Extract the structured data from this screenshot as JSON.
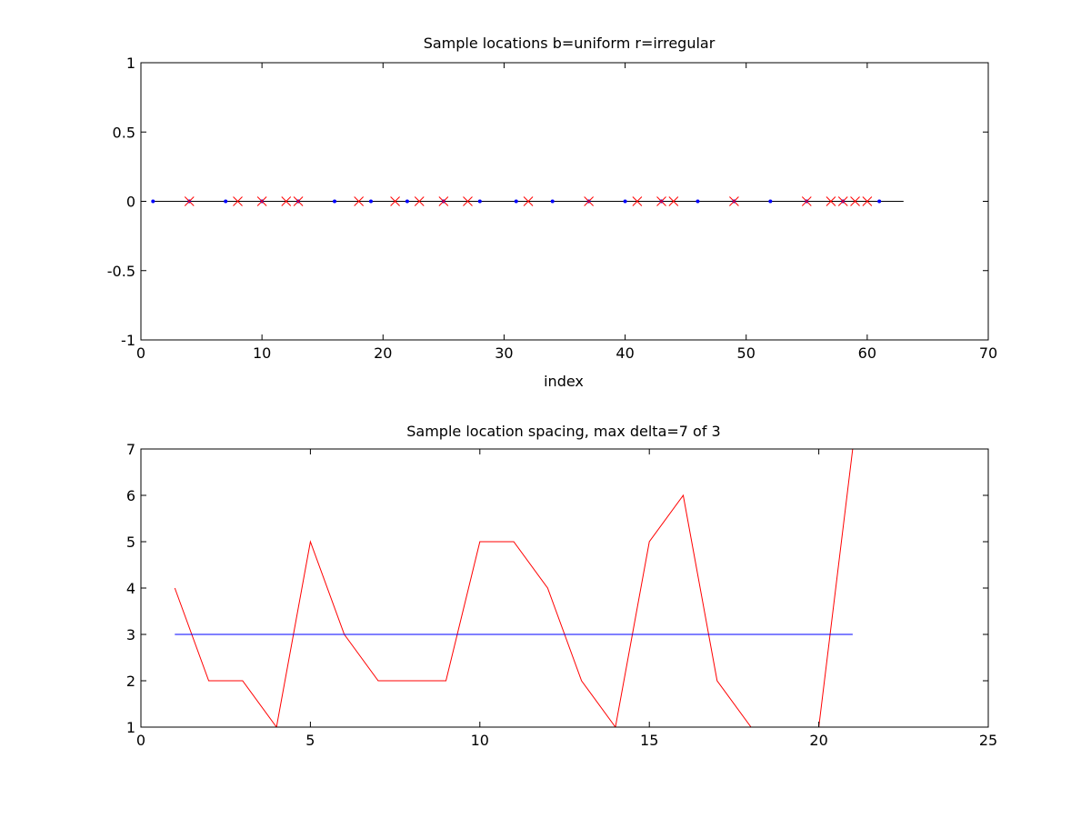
{
  "chart_data": [
    {
      "type": "scatter",
      "title": "Sample locations b=uniform r=irregular",
      "xlabel": "index",
      "ylabel": "",
      "xlim": [
        0,
        70
      ],
      "ylim": [
        -1,
        1
      ],
      "xticks": [
        "0",
        "10",
        "20",
        "30",
        "40",
        "50",
        "60",
        "70"
      ],
      "yticks": [
        "-1",
        "-0.5",
        "0",
        "0.5",
        "1"
      ],
      "grid": false,
      "baseline": {
        "x": [
          1,
          63
        ],
        "y": 0,
        "color": "#000000"
      },
      "series": [
        {
          "marker": "dot",
          "color": "#0000ff",
          "x": [
            1,
            4,
            7,
            10,
            13,
            16,
            19,
            22,
            25,
            28,
            31,
            34,
            37,
            40,
            43,
            46,
            49,
            52,
            55,
            58,
            61
          ],
          "y": [
            0,
            0,
            0,
            0,
            0,
            0,
            0,
            0,
            0,
            0,
            0,
            0,
            0,
            0,
            0,
            0,
            0,
            0,
            0,
            0,
            0
          ]
        },
        {
          "marker": "x",
          "color": "#ff0000",
          "x": [
            4,
            8,
            10,
            12,
            13,
            18,
            21,
            23,
            25,
            27,
            32,
            37,
            41,
            43,
            44,
            49,
            55,
            57,
            58,
            59,
            60
          ],
          "y": [
            0,
            0,
            0,
            0,
            0,
            0,
            0,
            0,
            0,
            0,
            0,
            0,
            0,
            0,
            0,
            0,
            0,
            0,
            0,
            0,
            0
          ]
        }
      ]
    },
    {
      "type": "line",
      "title": "Sample location spacing, max delta=7 of 3",
      "xlabel": "",
      "ylabel": "",
      "xlim": [
        0,
        25
      ],
      "ylim": [
        1,
        7
      ],
      "xticks": [
        "0",
        "5",
        "10",
        "15",
        "20",
        "25"
      ],
      "yticks": [
        "1",
        "2",
        "3",
        "4",
        "5",
        "6",
        "7"
      ],
      "grid": false,
      "series": [
        {
          "color": "#ff0000",
          "x": [
            1,
            2,
            3,
            4,
            5,
            6,
            7,
            8,
            9,
            10,
            11,
            12,
            13,
            14,
            15,
            16,
            17,
            18,
            19,
            20,
            21
          ],
          "y": [
            4,
            2,
            2,
            1,
            5,
            3,
            2,
            2,
            2,
            5,
            5,
            4,
            2,
            1,
            5,
            6,
            2,
            1,
            1,
            1,
            7
          ]
        },
        {
          "color": "#0000ff",
          "x": [
            1,
            21
          ],
          "y": [
            3,
            3
          ]
        }
      ]
    }
  ]
}
